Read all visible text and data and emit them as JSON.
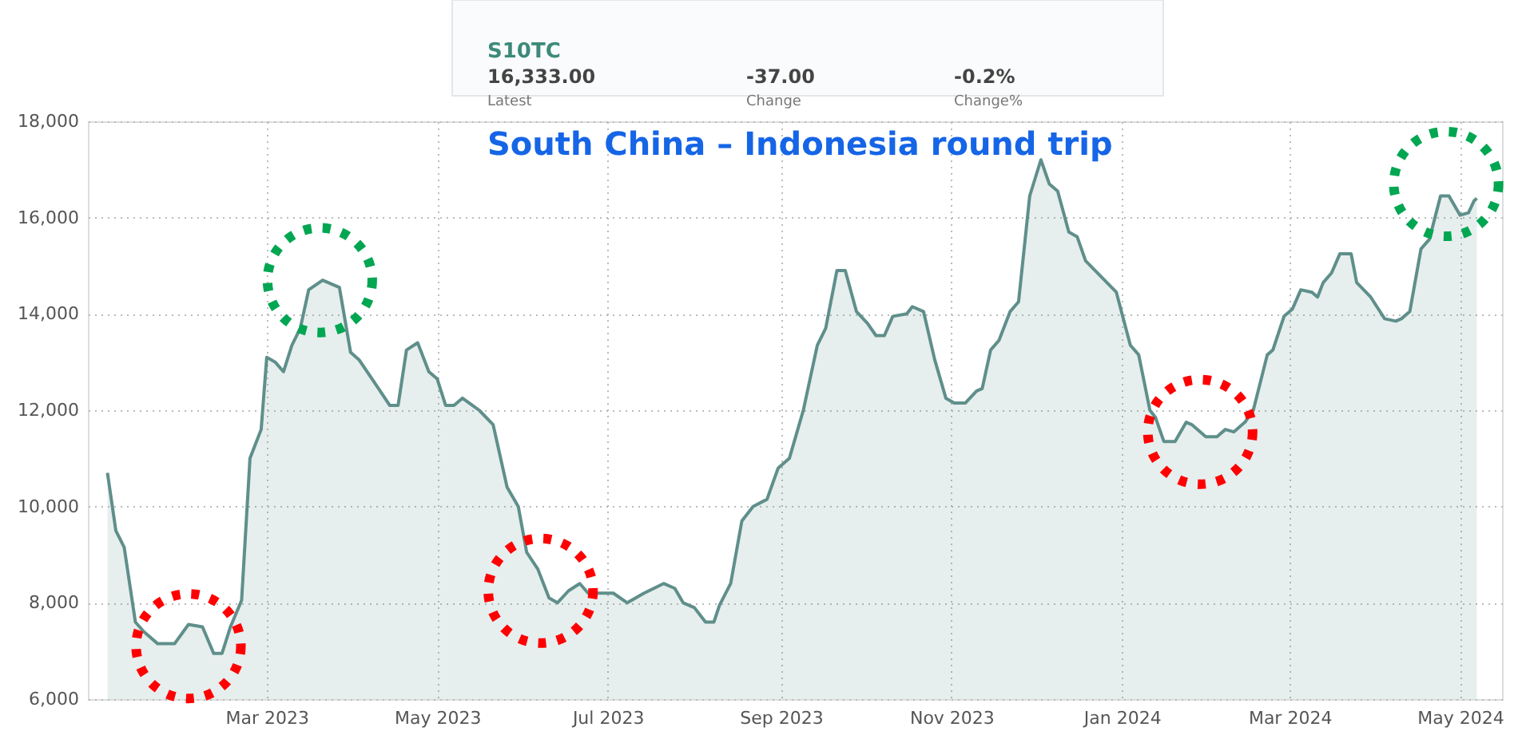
{
  "chart_data": {
    "type": "area",
    "title": "South China – Indonesia round trip",
    "annotations": [
      "S10TC",
      "16,333.00",
      "Latest",
      "-37.00",
      "Change",
      "-0.2%",
      "Change%"
    ],
    "xlim": [
      "2022-12-27",
      "2024-05-16"
    ],
    "xticks": [
      {
        "value": "2023-03-01",
        "label": "Mar 2023"
      },
      {
        "value": "2023-05-01",
        "label": "May 2023"
      },
      {
        "value": "2023-07-01",
        "label": "Jul 2023"
      },
      {
        "value": "2023-09-01",
        "label": "Sep 2023"
      },
      {
        "value": "2023-11-01",
        "label": "Nov 2023"
      },
      {
        "value": "2024-01-01",
        "label": "Jan 2024"
      },
      {
        "value": "2024-03-01",
        "label": "Mar 2024"
      },
      {
        "value": "2024-05-01",
        "label": "May 2024"
      }
    ],
    "ylim": [
      6000,
      18000
    ],
    "yticks": [
      {
        "value": 6000,
        "label": "6,000"
      },
      {
        "value": 8000,
        "label": "8,000"
      },
      {
        "value": 10000,
        "label": "10,000"
      },
      {
        "value": 12000,
        "label": "12,000"
      },
      {
        "value": 14000,
        "label": "14,000"
      },
      {
        "value": 16000,
        "label": "16,000"
      },
      {
        "value": 18000,
        "label": "18,000"
      }
    ],
    "grid": true,
    "series": [
      {
        "color": "#5f8f8b",
        "line_style": "solid",
        "x": [
          "2023-01-03",
          "2023-01-06",
          "2023-01-09",
          "2023-01-13",
          "2023-01-16",
          "2023-01-21",
          "2023-01-27",
          "2023-02-01",
          "2023-02-06",
          "2023-02-10",
          "2023-02-13",
          "2023-02-16",
          "2023-02-20",
          "2023-02-23",
          "2023-02-27",
          "2023-03-01",
          "2023-03-04",
          "2023-03-07",
          "2023-03-10",
          "2023-03-13",
          "2023-03-16",
          "2023-03-21",
          "2023-03-27",
          "2023-03-31",
          "2023-04-03",
          "2023-04-10",
          "2023-04-14",
          "2023-04-17",
          "2023-04-20",
          "2023-04-24",
          "2023-04-28",
          "2023-05-01",
          "2023-05-04",
          "2023-05-07",
          "2023-05-10",
          "2023-05-16",
          "2023-05-21",
          "2023-05-26",
          "2023-05-30",
          "2023-06-02",
          "2023-06-06",
          "2023-06-10",
          "2023-06-13",
          "2023-06-17",
          "2023-06-21",
          "2023-06-24",
          "2023-07-03",
          "2023-07-08",
          "2023-07-14",
          "2023-07-21",
          "2023-07-25",
          "2023-07-28",
          "2023-08-01",
          "2023-08-05",
          "2023-08-08",
          "2023-08-10",
          "2023-08-14",
          "2023-08-18",
          "2023-08-22",
          "2023-08-27",
          "2023-08-31",
          "2023-09-04",
          "2023-09-09",
          "2023-09-14",
          "2023-09-17",
          "2023-09-21",
          "2023-09-24",
          "2023-09-28",
          "2023-10-02",
          "2023-10-05",
          "2023-10-08",
          "2023-10-11",
          "2023-10-16",
          "2023-10-18",
          "2023-10-22",
          "2023-10-26",
          "2023-10-30",
          "2023-11-02",
          "2023-11-06",
          "2023-11-10",
          "2023-11-12",
          "2023-11-15",
          "2023-11-18",
          "2023-11-22",
          "2023-11-25",
          "2023-11-29",
          "2023-12-03",
          "2023-12-06",
          "2023-12-09",
          "2023-12-13",
          "2023-12-16",
          "2023-12-19",
          "2023-12-30",
          "2024-01-04",
          "2024-01-07",
          "2024-01-11",
          "2024-01-13",
          "2024-01-16",
          "2024-01-20",
          "2024-01-24",
          "2024-01-26",
          "2024-01-31",
          "2024-02-04",
          "2024-02-07",
          "2024-02-10",
          "2024-02-14",
          "2024-02-17",
          "2024-02-22",
          "2024-02-24",
          "2024-02-28",
          "2024-03-02",
          "2024-03-05",
          "2024-03-09",
          "2024-03-11",
          "2024-03-13",
          "2024-03-16",
          "2024-03-19",
          "2024-03-23",
          "2024-03-25",
          "2024-03-30",
          "2024-04-04",
          "2024-04-08",
          "2024-04-10",
          "2024-04-13",
          "2024-04-17",
          "2024-04-20",
          "2024-04-24",
          "2024-04-27",
          "2024-05-01",
          "2024-05-04",
          "2024-05-06",
          "2024-05-07"
        ],
        "values": [
          10700,
          9500,
          9150,
          7600,
          7400,
          7150,
          7150,
          7550,
          7500,
          6950,
          6950,
          7500,
          8050,
          11000,
          11600,
          13100,
          13000,
          12800,
          13350,
          13700,
          14500,
          14700,
          14550,
          13200,
          13050,
          12450,
          12100,
          12100,
          13250,
          13400,
          12800,
          12650,
          12100,
          12100,
          12250,
          12000,
          11700,
          10400,
          10000,
          9050,
          8700,
          8100,
          8000,
          8250,
          8400,
          8200,
          8200,
          8000,
          8200,
          8400,
          8300,
          8000,
          7900,
          7600,
          7600,
          7950,
          8400,
          9700,
          10000,
          10150,
          10800,
          11000,
          12000,
          13350,
          13700,
          14900,
          14900,
          14050,
          13800,
          13550,
          13550,
          13950,
          14000,
          14150,
          14050,
          13050,
          12250,
          12150,
          12150,
          12400,
          12450,
          13250,
          13450,
          14050,
          14250,
          16450,
          17200,
          16700,
          16550,
          15700,
          15600,
          15100,
          14450,
          13350,
          13150,
          12000,
          11850,
          11350,
          11350,
          11750,
          11700,
          11450,
          11450,
          11600,
          11550,
          11750,
          12000,
          13150,
          13250,
          13950,
          14100,
          14500,
          14450,
          14350,
          14650,
          14850,
          15250,
          15250,
          14650,
          14350,
          13900,
          13850,
          13900,
          14050,
          15350,
          15550,
          16450,
          16450,
          16050,
          16100,
          16350,
          16400
        ]
      },
      {
        "type": "scatter",
        "color": "#ff0000",
        "marker": "circle",
        "line_style": "dotted",
        "x": [
          "2023-02-01",
          "2023-06-07",
          "2024-01-29"
        ],
        "values": [
          7100,
          8250,
          11550
        ]
      },
      {
        "type": "scatter",
        "color": "#00a651",
        "marker": "circle",
        "line_style": "dotted",
        "x": [
          "2023-03-20",
          "2024-04-26"
        ],
        "values": [
          14700,
          16700
        ]
      }
    ]
  }
}
